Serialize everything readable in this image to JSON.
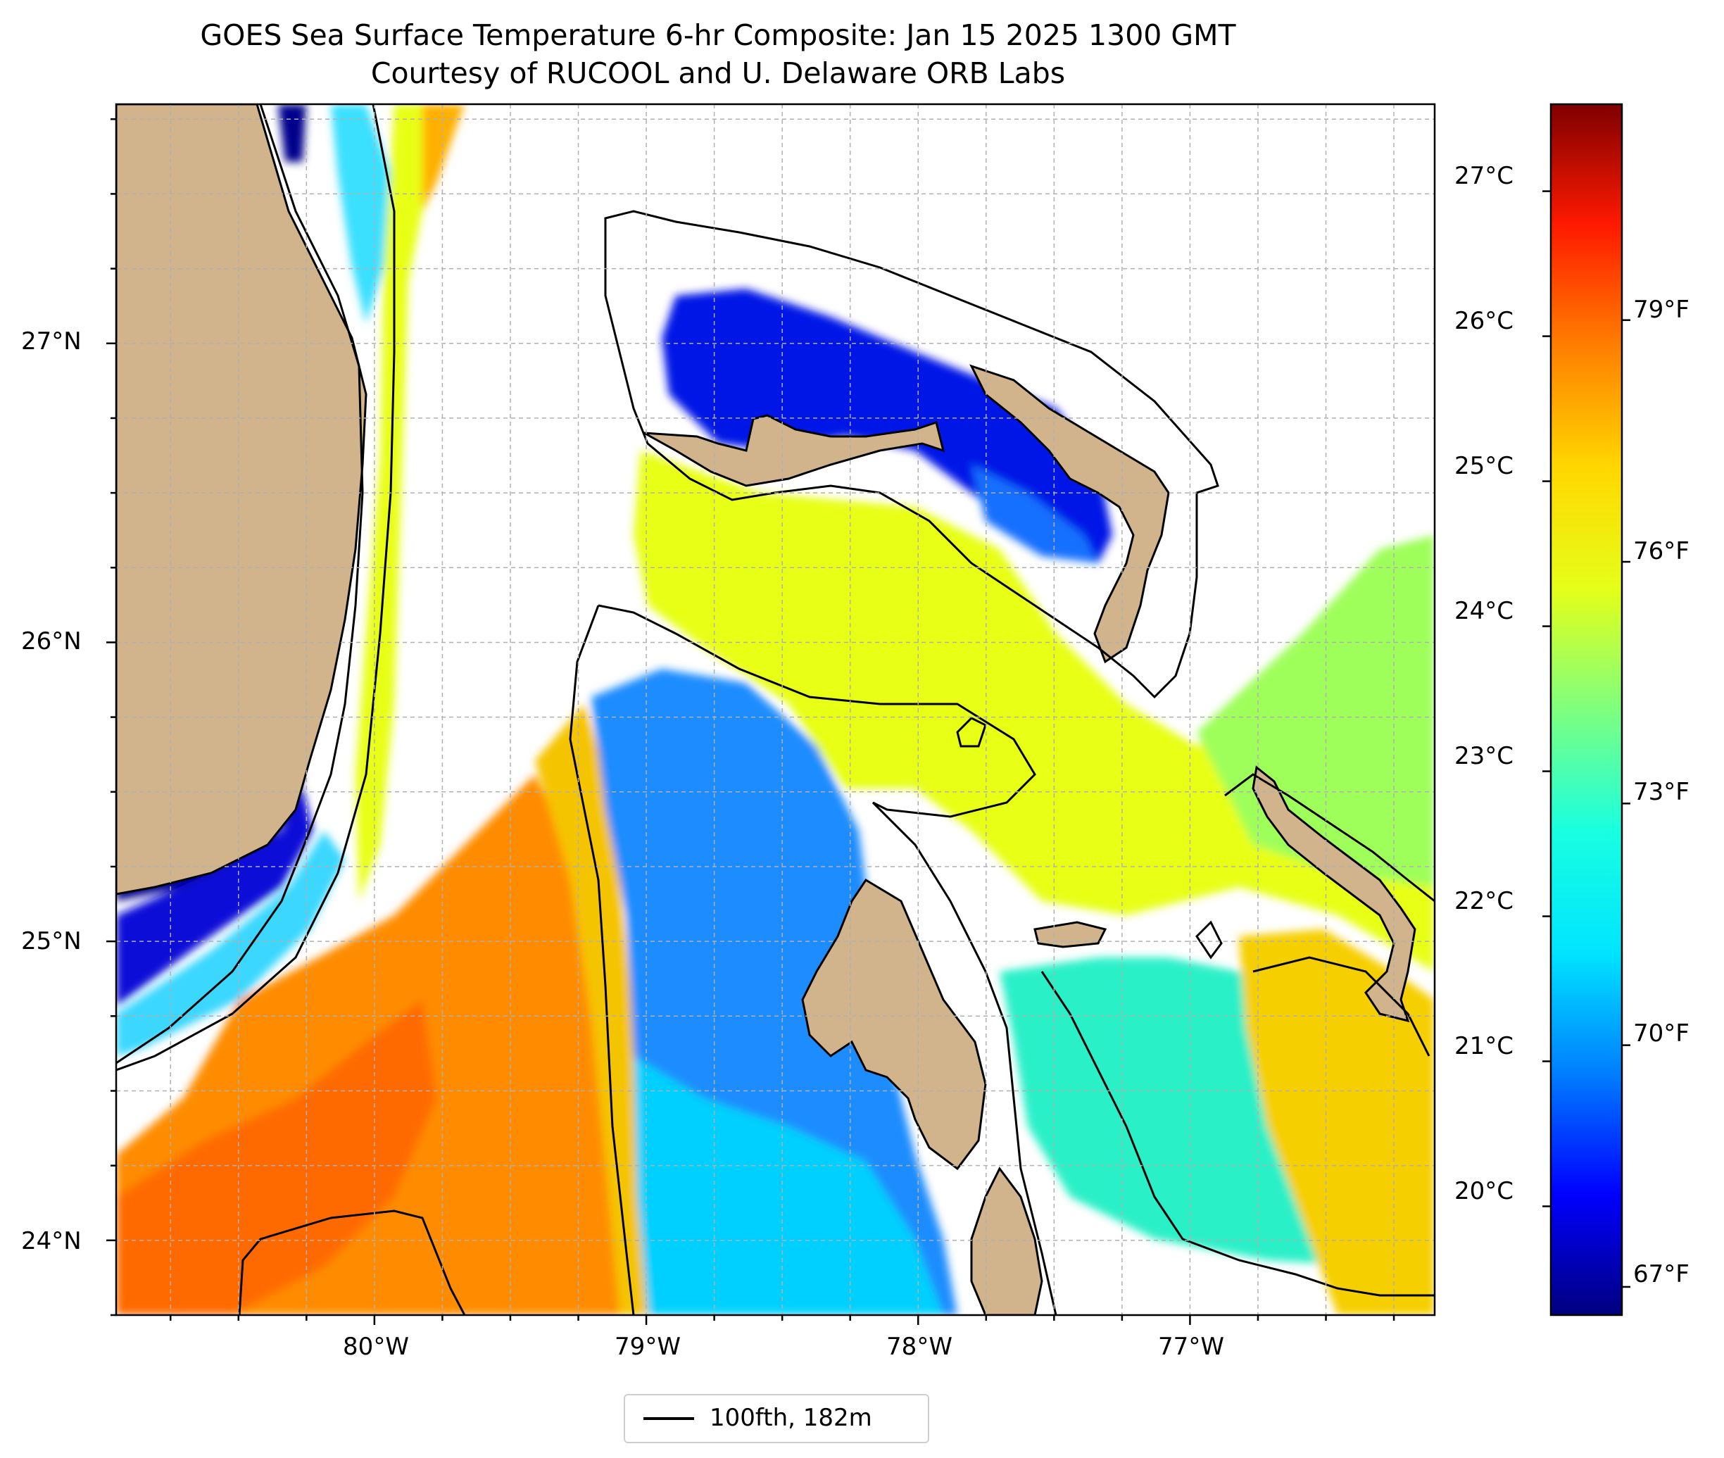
{
  "title": {
    "line1": "GOES Sea Surface Temperature 6-hr Composite: Jan 15 2025 1300 GMT",
    "line2": "Courtesy of RUCOOL and U. Delaware ORB Labs"
  },
  "map": {
    "lat_range": [
      23.75,
      27.8
    ],
    "lon_range": [
      -80.95,
      -76.1
    ],
    "lat_ticks": [
      {
        "value": 27,
        "label": "27°N"
      },
      {
        "value": 26,
        "label": "26°N"
      },
      {
        "value": 25,
        "label": "25°N"
      },
      {
        "value": 24,
        "label": "24°N"
      }
    ],
    "lon_ticks": [
      {
        "value": -80,
        "label": "80°W"
      },
      {
        "value": -79,
        "label": "79°W"
      },
      {
        "value": -78,
        "label": "78°W"
      },
      {
        "value": -77,
        "label": "77°W"
      }
    ],
    "gridlines": "dashed every 0.25°",
    "land_color": "#d2b48c",
    "no_data_color": "#ffffff",
    "regions": [
      {
        "name": "Florida peninsula",
        "type": "land"
      },
      {
        "name": "Grand Bahama",
        "type": "land"
      },
      {
        "name": "Abaco",
        "type": "land"
      },
      {
        "name": "Andros",
        "type": "land"
      },
      {
        "name": "New Providence",
        "type": "land"
      },
      {
        "name": "Eleuthera",
        "type": "land"
      },
      {
        "name": "Exuma Cays",
        "type": "land"
      }
    ]
  },
  "colorbar": {
    "colormap": "jet",
    "celsius_range": [
      19.25,
      27.6
    ],
    "celsius_ticks": [
      {
        "value": 20,
        "label": "20°C"
      },
      {
        "value": 21,
        "label": "21°C"
      },
      {
        "value": 22,
        "label": "22°C"
      },
      {
        "value": 23,
        "label": "23°C"
      },
      {
        "value": 24,
        "label": "24°C"
      },
      {
        "value": 25,
        "label": "25°C"
      },
      {
        "value": 26,
        "label": "26°C"
      },
      {
        "value": 27,
        "label": "27°C"
      }
    ],
    "fahrenheit_ticks": [
      {
        "value": 67,
        "label": "67°F"
      },
      {
        "value": 70,
        "label": "70°F"
      },
      {
        "value": 73,
        "label": "73°F"
      },
      {
        "value": 76,
        "label": "76°F"
      },
      {
        "value": 79,
        "label": "79°F"
      }
    ],
    "colors": [
      "#00007f",
      "#0000ff",
      "#007fff",
      "#00e5ff",
      "#19ffe0",
      "#7fff7f",
      "#e5ff19",
      "#ffd700",
      "#ff7f00",
      "#ff1a00",
      "#7f0000"
    ]
  },
  "legend": {
    "label": "100fth, 182m",
    "line_color": "#000000"
  }
}
